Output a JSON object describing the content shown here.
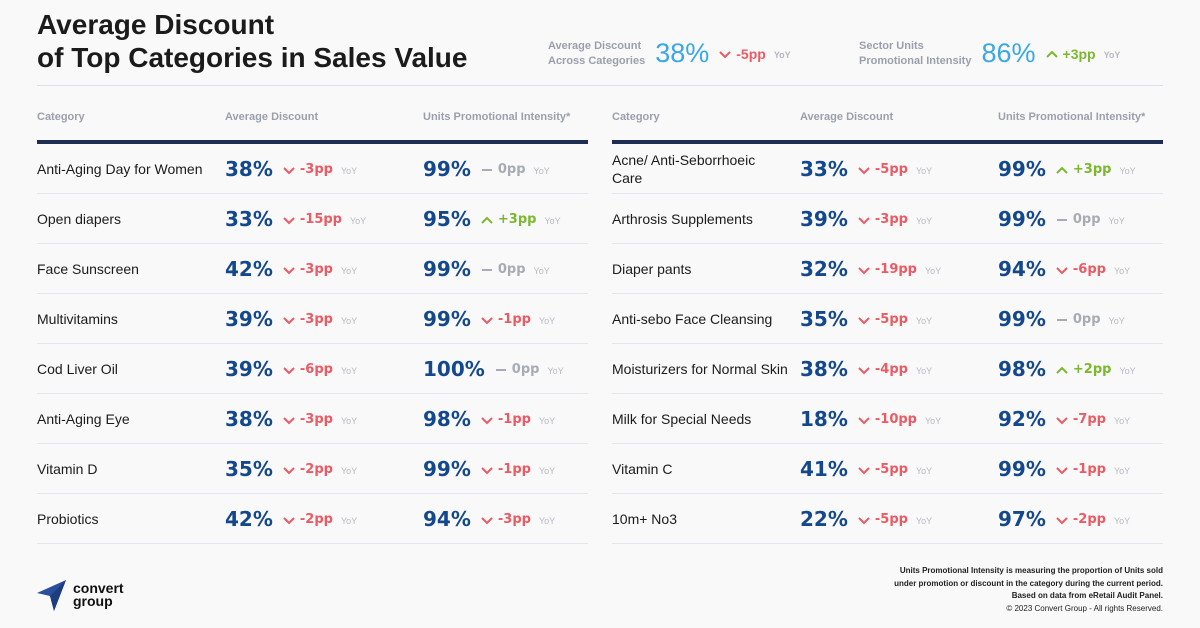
{
  "title": {
    "line1": "Average Discount",
    "line2": "of Top Categories in Sales Value"
  },
  "kpis": [
    {
      "label1": "Average Discount",
      "label2": "Across Categories",
      "value": "38%",
      "delta": "-5pp",
      "direction": "down",
      "yoy": "YoY"
    },
    {
      "label1": "Sector Units",
      "label2": "Promotional Intensity",
      "value": "86%",
      "delta": "+3pp",
      "direction": "up",
      "yoy": "YoY"
    }
  ],
  "colors": {
    "kpi_value": "#3aa7e6",
    "value": "#14488c",
    "down": "#ec5a63",
    "up": "#7cb82f",
    "flat": "#a7abb4",
    "header_rule": "#1d2d53",
    "logo": "#2a4f9c"
  },
  "tables": [
    {
      "headers": [
        "Category",
        "Average Discount",
        "Units Promotional Intensity*"
      ],
      "rows": [
        {
          "category": "Anti-Aging Day for Women",
          "discount": "38%",
          "discount_delta": "-3pp",
          "discount_dir": "down",
          "upi": "99%",
          "upi_delta": "0pp",
          "upi_dir": "flat"
        },
        {
          "category": "Open diapers",
          "discount": "33%",
          "discount_delta": "-15pp",
          "discount_dir": "down",
          "upi": "95%",
          "upi_delta": "+3pp",
          "upi_dir": "up"
        },
        {
          "category": "Face Sunscreen",
          "discount": "42%",
          "discount_delta": "-3pp",
          "discount_dir": "down",
          "upi": "99%",
          "upi_delta": "0pp",
          "upi_dir": "flat"
        },
        {
          "category": "Multivitamins",
          "discount": "39%",
          "discount_delta": "-3pp",
          "discount_dir": "down",
          "upi": "99%",
          "upi_delta": "-1pp",
          "upi_dir": "down"
        },
        {
          "category": "Cod Liver Oil",
          "discount": "39%",
          "discount_delta": "-6pp",
          "discount_dir": "down",
          "upi": "100%",
          "upi_delta": "0pp",
          "upi_dir": "flat"
        },
        {
          "category": "Anti-Aging Eye",
          "discount": "38%",
          "discount_delta": "-3pp",
          "discount_dir": "down",
          "upi": "98%",
          "upi_delta": "-1pp",
          "upi_dir": "down"
        },
        {
          "category": "Vitamin D",
          "discount": "35%",
          "discount_delta": "-2pp",
          "discount_dir": "down",
          "upi": "99%",
          "upi_delta": "-1pp",
          "upi_dir": "down"
        },
        {
          "category": "Probiotics",
          "discount": "42%",
          "discount_delta": "-2pp",
          "discount_dir": "down",
          "upi": "94%",
          "upi_delta": "-3pp",
          "upi_dir": "down"
        }
      ]
    },
    {
      "headers": [
        "Category",
        "Average Discount",
        "Units Promotional Intensity*"
      ],
      "rows": [
        {
          "category": "Acne/ Anti-Seborrhoeic Care",
          "discount": "33%",
          "discount_delta": "-5pp",
          "discount_dir": "down",
          "upi": "99%",
          "upi_delta": "+3pp",
          "upi_dir": "up"
        },
        {
          "category": "Arthrosis Supplements",
          "discount": "39%",
          "discount_delta": "-3pp",
          "discount_dir": "down",
          "upi": "99%",
          "upi_delta": "0pp",
          "upi_dir": "flat"
        },
        {
          "category": "Diaper pants",
          "discount": "32%",
          "discount_delta": "-19pp",
          "discount_dir": "down",
          "upi": "94%",
          "upi_delta": "-6pp",
          "upi_dir": "down"
        },
        {
          "category": "Anti-sebo Face Cleansing",
          "discount": "35%",
          "discount_delta": "-5pp",
          "discount_dir": "down",
          "upi": "99%",
          "upi_delta": "0pp",
          "upi_dir": "flat"
        },
        {
          "category": "Moisturizers for Normal Skin",
          "discount": "38%",
          "discount_delta": "-4pp",
          "discount_dir": "down",
          "upi": "98%",
          "upi_delta": "+2pp",
          "upi_dir": "up"
        },
        {
          "category": "Milk for Special Needs",
          "discount": "18%",
          "discount_delta": "-10pp",
          "discount_dir": "down",
          "upi": "92%",
          "upi_delta": "-7pp",
          "upi_dir": "down"
        },
        {
          "category": "Vitamin C",
          "discount": "41%",
          "discount_delta": "-5pp",
          "discount_dir": "down",
          "upi": "99%",
          "upi_delta": "-1pp",
          "upi_dir": "down"
        },
        {
          "category": "10m+ No3",
          "discount": "22%",
          "discount_delta": "-5pp",
          "discount_dir": "down",
          "upi": "97%",
          "upi_delta": "-2pp",
          "upi_dir": "down"
        }
      ]
    }
  ],
  "yoy_label": "YoY",
  "logo": {
    "line1": "convert",
    "line2": "group"
  },
  "footer": {
    "note1": "Units Promotional Intensity is measuring the proportion of Units sold",
    "note2": "under promotion or discount in the category during the current period.",
    "note3": "Based on data from eRetail Audit Panel.",
    "copyright": "© 2023 Convert Group - All rights Reserved."
  }
}
